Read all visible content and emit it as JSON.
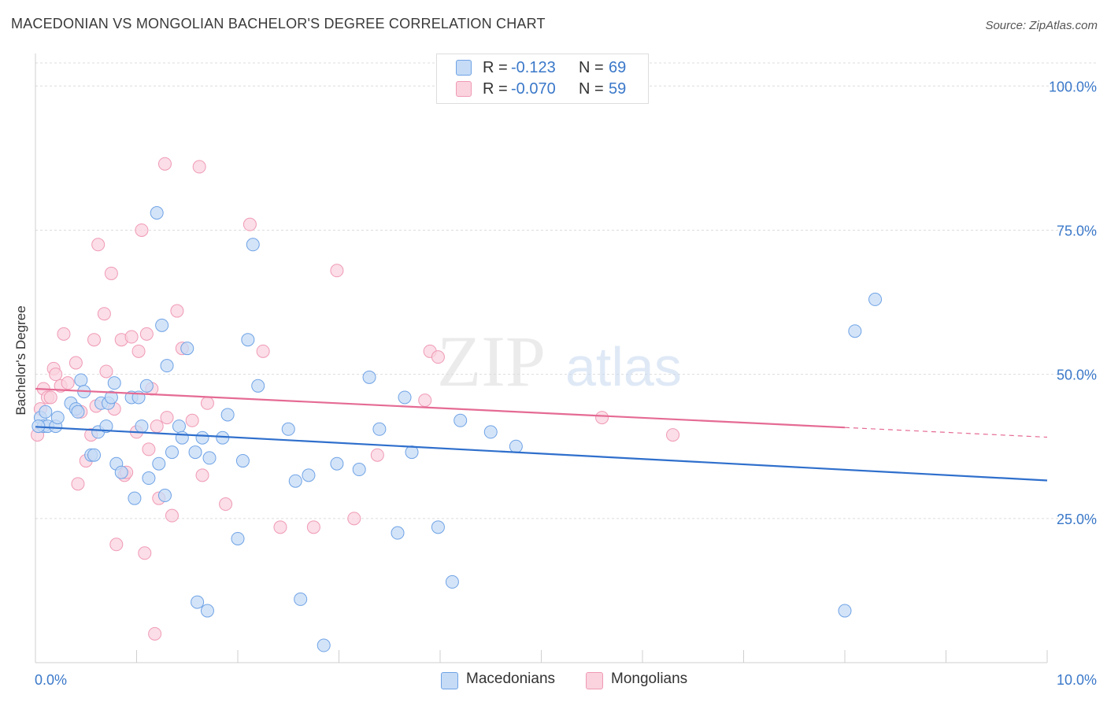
{
  "title": "MACEDONIAN VS MONGOLIAN BACHELOR'S DEGREE CORRELATION CHART",
  "source": "Source: ZipAtlas.com",
  "watermark": {
    "part1": "ZIP",
    "part2": "atlas"
  },
  "stats": [
    {
      "r_label": "R =",
      "r_value": "-0.123",
      "n_label": "N =",
      "n_value": "69",
      "color": "#6fa3e6"
    },
    {
      "r_label": "R =",
      "r_value": "-0.070",
      "n_label": "N =",
      "n_value": "59",
      "color": "#f09ab5"
    }
  ],
  "legend": [
    {
      "label": "Macedonians",
      "color": "#6fa3e6"
    },
    {
      "label": "Mongolians",
      "color": "#f09ab5"
    }
  ],
  "chart_data": {
    "type": "scatter",
    "ylabel": "Bachelor's Degree",
    "xlim": [
      0,
      10
    ],
    "ylim": [
      0,
      104
    ],
    "x_tick_labels": [
      {
        "value": 0,
        "label": "0.0%"
      },
      {
        "value": 10,
        "label": "10.0%"
      }
    ],
    "y_tick_labels": [
      {
        "value": 25,
        "label": "25.0%"
      },
      {
        "value": 50,
        "label": "50.0%"
      },
      {
        "value": 75,
        "label": "75.0%"
      },
      {
        "value": 100,
        "label": "100.0%"
      }
    ],
    "grid": true,
    "colors": {
      "axis_text": "#3a78c9",
      "blue": "#6fa3e6",
      "blue_line": "#2f6fcc",
      "pink": "#f09ab5",
      "pink_line": "#e56b94"
    },
    "series": [
      {
        "name": "Macedonians",
        "trend": {
          "x": [
            0,
            10
          ],
          "y": [
            40.9,
            31.6
          ],
          "solid_to": 10
        },
        "points": [
          [
            0.05,
            42.5
          ],
          [
            0.08,
            41
          ],
          [
            0.1,
            43.5
          ],
          [
            0.12,
            41
          ],
          [
            0.2,
            41
          ],
          [
            0.22,
            42.5
          ],
          [
            0.35,
            45
          ],
          [
            0.4,
            44
          ],
          [
            0.42,
            43.5
          ],
          [
            0.45,
            49
          ],
          [
            0.48,
            47
          ],
          [
            0.55,
            36
          ],
          [
            0.58,
            36
          ],
          [
            0.62,
            40
          ],
          [
            0.65,
            45
          ],
          [
            0.7,
            41
          ],
          [
            0.72,
            45
          ],
          [
            0.75,
            46
          ],
          [
            0.78,
            48.5
          ],
          [
            0.8,
            34.5
          ],
          [
            0.85,
            33
          ],
          [
            0.95,
            46
          ],
          [
            0.98,
            28.5
          ],
          [
            1.02,
            46
          ],
          [
            1.05,
            41
          ],
          [
            1.1,
            48
          ],
          [
            1.12,
            32
          ],
          [
            1.2,
            78
          ],
          [
            1.22,
            34.5
          ],
          [
            1.25,
            58.5
          ],
          [
            1.28,
            29
          ],
          [
            1.3,
            51.5
          ],
          [
            1.35,
            36.5
          ],
          [
            1.42,
            41
          ],
          [
            1.45,
            39
          ],
          [
            1.5,
            54.5
          ],
          [
            1.58,
            36.5
          ],
          [
            1.6,
            10.5
          ],
          [
            1.65,
            39
          ],
          [
            1.7,
            9
          ],
          [
            1.72,
            35.5
          ],
          [
            1.85,
            39
          ],
          [
            1.9,
            43
          ],
          [
            2.0,
            21.5
          ],
          [
            2.05,
            35
          ],
          [
            2.1,
            56
          ],
          [
            2.15,
            72.5
          ],
          [
            2.2,
            48
          ],
          [
            2.5,
            40.5
          ],
          [
            2.57,
            31.5
          ],
          [
            2.62,
            11
          ],
          [
            2.7,
            32.5
          ],
          [
            2.85,
            3
          ],
          [
            2.98,
            34.5
          ],
          [
            3.2,
            33.5
          ],
          [
            3.3,
            49.5
          ],
          [
            3.4,
            40.5
          ],
          [
            3.58,
            22.5
          ],
          [
            3.65,
            46
          ],
          [
            3.72,
            36.5
          ],
          [
            3.98,
            23.5
          ],
          [
            4.12,
            14
          ],
          [
            4.2,
            42
          ],
          [
            4.5,
            40
          ],
          [
            4.75,
            37.5
          ],
          [
            8.0,
            9
          ],
          [
            8.1,
            57.5
          ],
          [
            8.3,
            63
          ],
          [
            0.03,
            41
          ]
        ]
      },
      {
        "name": "Mongolians",
        "trend": {
          "x": [
            0,
            10
          ],
          "y": [
            47.5,
            39.1
          ],
          "solid_to": 8
        },
        "points": [
          [
            0.02,
            39.5
          ],
          [
            0.05,
            44
          ],
          [
            0.08,
            47.5
          ],
          [
            0.12,
            46
          ],
          [
            0.15,
            46
          ],
          [
            0.18,
            51
          ],
          [
            0.2,
            50
          ],
          [
            0.25,
            48
          ],
          [
            0.28,
            57
          ],
          [
            0.32,
            48.5
          ],
          [
            0.4,
            52
          ],
          [
            0.42,
            31
          ],
          [
            0.45,
            43.5
          ],
          [
            0.5,
            35
          ],
          [
            0.55,
            39.5
          ],
          [
            0.58,
            56
          ],
          [
            0.6,
            44.5
          ],
          [
            0.62,
            72.5
          ],
          [
            0.68,
            60.5
          ],
          [
            0.7,
            50.5
          ],
          [
            0.75,
            67.5
          ],
          [
            0.78,
            44
          ],
          [
            0.8,
            20.5
          ],
          [
            0.85,
            56
          ],
          [
            0.88,
            32.5
          ],
          [
            0.9,
            33
          ],
          [
            0.95,
            56.5
          ],
          [
            1.0,
            40
          ],
          [
            1.02,
            54
          ],
          [
            1.05,
            75
          ],
          [
            1.08,
            19
          ],
          [
            1.1,
            57
          ],
          [
            1.15,
            47.5
          ],
          [
            1.18,
            5
          ],
          [
            1.2,
            41
          ],
          [
            1.22,
            28.5
          ],
          [
            1.28,
            86.5
          ],
          [
            1.3,
            42.5
          ],
          [
            1.35,
            25.5
          ],
          [
            1.4,
            61
          ],
          [
            1.45,
            54.5
          ],
          [
            1.55,
            42
          ],
          [
            1.65,
            32.5
          ],
          [
            1.7,
            45
          ],
          [
            1.88,
            27.5
          ],
          [
            2.12,
            76
          ],
          [
            2.25,
            54
          ],
          [
            2.42,
            23.5
          ],
          [
            2.75,
            23.5
          ],
          [
            2.98,
            68
          ],
          [
            3.15,
            25
          ],
          [
            3.38,
            36
          ],
          [
            3.85,
            45.5
          ],
          [
            3.9,
            54
          ],
          [
            3.98,
            53
          ],
          [
            5.6,
            42.5
          ],
          [
            6.3,
            39.5
          ],
          [
            1.62,
            86
          ],
          [
            1.12,
            37
          ]
        ]
      }
    ]
  }
}
